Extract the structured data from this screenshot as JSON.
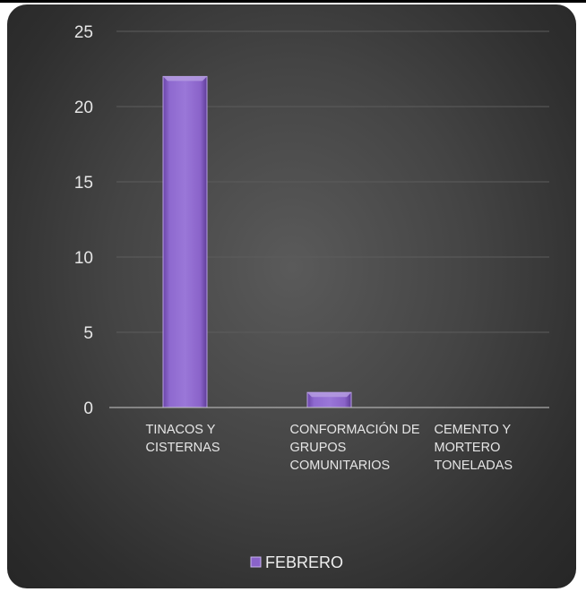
{
  "chart_data": {
    "type": "bar",
    "categories": [
      [
        "TINACOS Y",
        "CISTERNAS"
      ],
      [
        "CONFORMACIÓN DE",
        "GRUPOS",
        "COMUNITARIOS"
      ],
      [
        "CEMENTO Y",
        "MORTERO",
        "TONELADAS"
      ]
    ],
    "series": [
      {
        "name": "FEBRERO",
        "values": [
          22,
          1,
          0
        ],
        "color": "#8a63c9"
      }
    ],
    "ylim": [
      0,
      25
    ],
    "yticks": [
      0,
      5,
      10,
      15,
      20,
      25
    ],
    "grid": true,
    "legend": "bottom",
    "background": "#3c3c3c",
    "xlabel": "",
    "ylabel": "",
    "title": ""
  }
}
